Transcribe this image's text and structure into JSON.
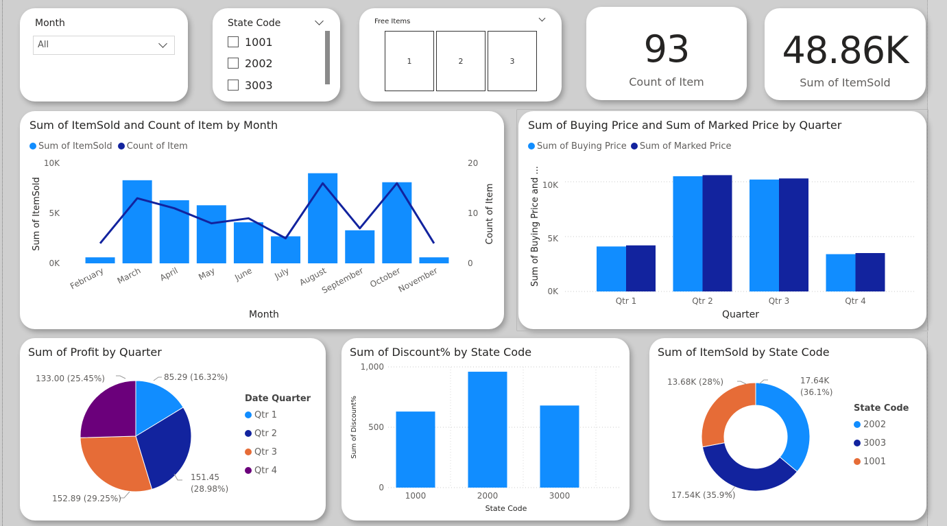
{
  "colors": {
    "light_blue": "#118DFF",
    "dark_blue": "#12239E",
    "orange": "#E66C37",
    "purple": "#6B007B"
  },
  "slicers": {
    "month": {
      "title": "Month",
      "value": "All"
    },
    "state_code": {
      "title": "State Code",
      "options": [
        "1001",
        "2002",
        "3003"
      ]
    },
    "free_items": {
      "title": "Free Items",
      "tiles": [
        "1",
        "2",
        "3"
      ]
    }
  },
  "kpis": {
    "count_item": {
      "value": "93",
      "label": "Count of Item"
    },
    "sum_itemsold": {
      "value": "48.86K",
      "label": "Sum of ItemSold"
    }
  },
  "charts": {
    "month_combo": {
      "title": "Sum of ItemSold and Count of Item by Month",
      "legend": [
        "Sum of ItemSold",
        "Count of Item"
      ],
      "xlabel": "Month",
      "ylabel_left": "Sum of ItemSold",
      "ylabel_right": "Count of Item",
      "left_ticks": [
        "10K",
        "5K",
        "0K"
      ],
      "right_ticks": [
        "20",
        "10",
        "0"
      ]
    },
    "quarter_bar": {
      "title": "Sum of Buying Price and Sum of Marked Price by Quarter",
      "legend": [
        "Sum of Buying Price",
        "Sum of Marked Price"
      ],
      "xlabel": "Quarter",
      "ylabel": "Sum of Buying Price and ...",
      "ticks": [
        "10K",
        "5K",
        "0K"
      ]
    },
    "profit_pie": {
      "title": "Sum of Profit by Quarter",
      "legend_title": "Date Quarter",
      "labels": [
        "85.29 (16.32%)",
        "151.45",
        "(28.98%)",
        "152.89 (29.25%)",
        "133.00 (25.45%)"
      ]
    },
    "discount_bar": {
      "title": "Sum of Discount% by State Code",
      "xlabel": "State Code",
      "ylabel": "Sum of Discount%",
      "ticks": [
        "1,000",
        "500",
        "0"
      ]
    },
    "itemsold_donut": {
      "title": "Sum of ItemSold by State Code",
      "legend_title": "State Code",
      "labels": [
        "17.64K",
        "(36.1%)",
        "17.54K (35.9%)",
        "13.68K (28%)"
      ]
    }
  },
  "chart_data": [
    {
      "type": "bar",
      "title": "Sum of ItemSold and Count of Item by Month",
      "categories": [
        "February",
        "March",
        "April",
        "May",
        "June",
        "July",
        "August",
        "September",
        "October",
        "November"
      ],
      "series": [
        {
          "name": "Sum of ItemSold",
          "type": "bar",
          "axis": "left",
          "values": [
            600,
            8300,
            6300,
            5800,
            4100,
            2700,
            9000,
            3300,
            8100,
            600
          ]
        },
        {
          "name": "Count of Item",
          "type": "line",
          "axis": "right",
          "values": [
            4,
            13,
            11,
            8,
            9,
            5,
            16,
            7,
            16,
            4
          ]
        }
      ],
      "xlabel": "Month",
      "ylabel": "Sum of ItemSold",
      "y2label": "Count of Item",
      "ylim": [
        0,
        10000
      ],
      "y2lim": [
        0,
        20
      ]
    },
    {
      "type": "bar",
      "title": "Sum of Buying Price and Sum of Marked Price by Quarter",
      "categories": [
        "Qtr 1",
        "Qtr 2",
        "Qtr 3",
        "Qtr 4"
      ],
      "series": [
        {
          "name": "Sum of Buying Price",
          "values": [
            4100,
            10500,
            10200,
            3400
          ]
        },
        {
          "name": "Sum of Marked Price",
          "values": [
            4200,
            10600,
            10300,
            3500
          ]
        }
      ],
      "xlabel": "Quarter",
      "ylabel": "Sum of Buying Price and ...",
      "ylim": [
        0,
        12000
      ]
    },
    {
      "type": "pie",
      "title": "Sum of Profit by Quarter",
      "categories": [
        "Qtr 1",
        "Qtr 2",
        "Qtr 3",
        "Qtr 4"
      ],
      "values": [
        85.29,
        151.45,
        152.89,
        133.0
      ],
      "percents": [
        16.32,
        28.98,
        29.25,
        25.45
      ]
    },
    {
      "type": "bar",
      "title": "Sum of Discount% by State Code",
      "categories": [
        "1000",
        "2000",
        "3000"
      ],
      "values": [
        630,
        960,
        680
      ],
      "xlabel": "State Code",
      "ylabel": "Sum of Discount%",
      "ylim": [
        0,
        1000
      ]
    },
    {
      "type": "pie",
      "title": "Sum of ItemSold by State Code",
      "categories": [
        "2002",
        "3003",
        "1001"
      ],
      "values": [
        17640,
        17540,
        13680
      ],
      "percents": [
        36.1,
        35.9,
        28
      ]
    }
  ]
}
